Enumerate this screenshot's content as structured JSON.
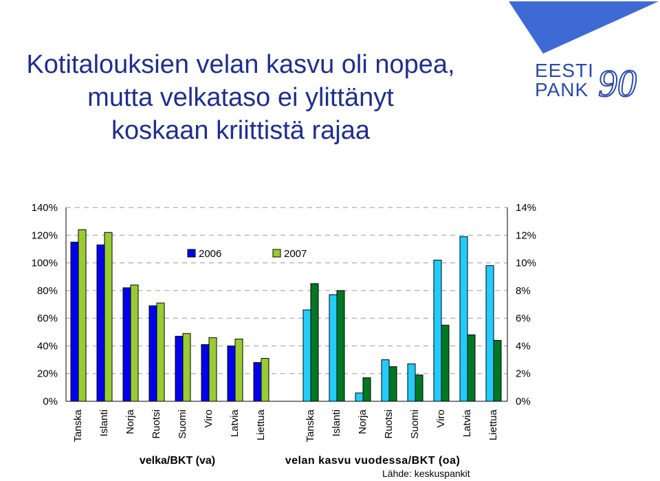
{
  "title_lines": [
    "Kotitalouksien velan kasvu oli nopea,",
    "mutta velkataso ei ylittänyt",
    "koskaan kriittistä rajaa"
  ],
  "logo": {
    "line1": "EESTI",
    "line2": "PANK",
    "mark": "90"
  },
  "source": "Lähde: keskuspankit",
  "colors": {
    "title": "#1f2f8c",
    "logo_triangle": "#3f6ad6",
    "logo_text": "#2a4aa8",
    "left_2006": "#0000ee",
    "left_2007": "#99cc33",
    "right_2006": "#22ccff",
    "right_2007": "#007722"
  },
  "chart_data": {
    "type": "bar",
    "legend": [
      "2006",
      "2007"
    ],
    "left_axis": {
      "ylim": [
        0,
        140
      ],
      "ticks": [
        "0%",
        "20%",
        "40%",
        "60%",
        "80%",
        "100%",
        "120%",
        "140%"
      ]
    },
    "right_axis": {
      "ylim": [
        0,
        14
      ],
      "ticks": [
        "0%",
        "2%",
        "4%",
        "6%",
        "8%",
        "10%",
        "12%",
        "14%"
      ]
    },
    "groups": [
      {
        "label": "velka/BKT (va)",
        "axis": "left",
        "categories": [
          "Tanska",
          "Islanti",
          "Norja",
          "Ruotsi",
          "Suomi",
          "Viro",
          "Latvia",
          "Liettua"
        ],
        "series": [
          {
            "name": "2006",
            "values": [
              115,
              113,
              82,
              69,
              47,
              41,
              40,
              28
            ]
          },
          {
            "name": "2007",
            "values": [
              124,
              122,
              84,
              71,
              49,
              46,
              45,
              31
            ]
          }
        ]
      },
      {
        "label": "velan kasvu vuodessa/BKT (oa)",
        "axis": "right",
        "categories": [
          "Tanska",
          "Islanti",
          "Norja",
          "Ruotsi",
          "Suomi",
          "Viro",
          "Latvia",
          "Liettua"
        ],
        "series": [
          {
            "name": "2006",
            "values": [
              6.6,
              7.7,
              0.6,
              3.0,
              2.7,
              10.2,
              11.9,
              9.8
            ]
          },
          {
            "name": "2007",
            "values": [
              8.5,
              8.0,
              1.7,
              2.5,
              1.9,
              5.5,
              4.8,
              4.4
            ]
          }
        ]
      }
    ]
  }
}
